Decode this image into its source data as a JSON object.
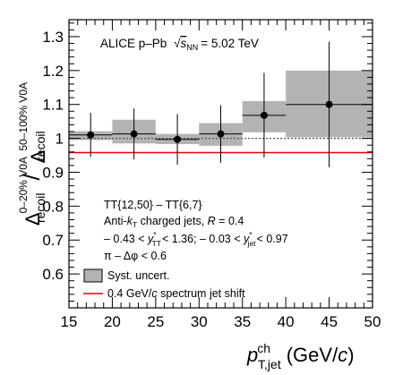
{
  "chart_data": {
    "type": "scatter",
    "title": "",
    "xlabel": {
      "main": "p",
      "sup": "ch",
      "sub": "T,jet",
      "unit_open": "(GeV/",
      "unit_c": "c",
      "unit_close": ")"
    },
    "ylabel": {
      "num": {
        "delta": "Δ",
        "sup": "50–100% V0A",
        "sub": "recoil"
      },
      "den": {
        "delta": "Δ",
        "sup": "0–20% V0A",
        "sub": "recoil"
      },
      "slash": "/"
    },
    "xlim": [
      15,
      50
    ],
    "ylim": [
      0.5,
      1.35
    ],
    "x_ticks": [
      "15",
      "20",
      "25",
      "30",
      "35",
      "40",
      "45",
      "50"
    ],
    "y_ticks": [
      "0.6",
      "0.7",
      "0.8",
      "0.9",
      "1",
      "1.1",
      "1.2",
      "1.3"
    ],
    "grid": false,
    "series": [
      {
        "name": "",
        "points": [
          {
            "x": 17.5,
            "xlo": 15,
            "xhi": 20,
            "y": 1.01,
            "stat": 0.065,
            "syst_lo": 0.995,
            "syst_hi": 1.021
          },
          {
            "x": 22.5,
            "xlo": 20,
            "xhi": 25,
            "y": 1.013,
            "stat": 0.075,
            "syst_lo": 0.985,
            "syst_hi": 1.055
          },
          {
            "x": 27.5,
            "xlo": 25,
            "xhi": 30,
            "y": 0.997,
            "stat": 0.075,
            "syst_lo": 0.983,
            "syst_hi": 1.013
          },
          {
            "x": 32.5,
            "xlo": 30,
            "xhi": 35,
            "y": 1.013,
            "stat": 0.085,
            "syst_lo": 0.978,
            "syst_hi": 1.045
          },
          {
            "x": 37.5,
            "xlo": 35,
            "xhi": 40,
            "y": 1.068,
            "stat": 0.125,
            "syst_lo": 1.018,
            "syst_hi": 1.11
          },
          {
            "x": 45,
            "xlo": 40,
            "xhi": 50,
            "y": 1.1,
            "stat": 0.185,
            "syst_lo": 1.003,
            "syst_hi": 1.2
          }
        ]
      }
    ],
    "reference_lines": [
      {
        "y": 1.0,
        "style": "dotted",
        "color": "#555555"
      },
      {
        "y": 0.958,
        "style": "solid",
        "color": "#e8000b"
      }
    ],
    "annotations": {
      "header": {
        "text": "ALICE p–Pb",
        "sqrt": "s",
        "sqrt_sub": "NN",
        "value": "= 5.02 TeV"
      },
      "line1": "TT{12,50} – TT{6,7}",
      "line2": {
        "pre": "Anti-",
        "k": "k",
        "ksub": "T",
        "post": " charged jets, ",
        "R": "R",
        "rval": " = 0.4"
      },
      "line3": {
        "a": "– 0.43 < ",
        "y1": "y",
        "y1sup": "*",
        "y1sub": "TT",
        "b": "< 1.36;   – 0.03 < ",
        "y2": "y",
        "y2sup": "*",
        "y2sub": "jet",
        "c": "< 0.97"
      },
      "line4": "π – Δφ < 0.6"
    },
    "legend": {
      "placement": "bottom-left",
      "entries": [
        {
          "label": "Syst. uncert.",
          "swatch": "box",
          "color": "#b3b3b3"
        },
        {
          "label_pre": "0.4 GeV/",
          "label_c": "c",
          "label_post": " spectrum jet shift",
          "swatch": "line",
          "color": "#e8000b"
        }
      ]
    },
    "colors": {
      "syst": "#b3b3b3",
      "marker": "#000000",
      "shift_line": "#e8000b"
    }
  }
}
